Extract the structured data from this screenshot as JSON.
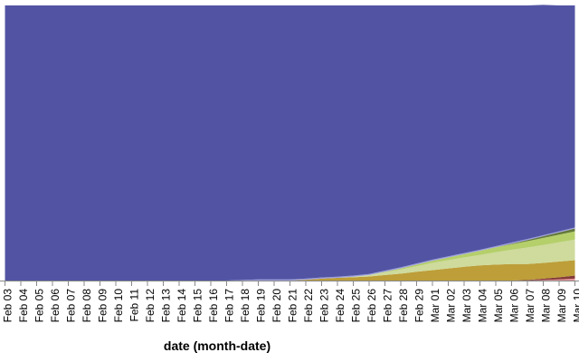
{
  "chart_data": {
    "type": "area",
    "stacked": "normalize",
    "xlabel": "date (month-date)",
    "ylabel": "",
    "ylim": [
      0,
      1
    ],
    "grid": false,
    "legend": "none",
    "x": [
      "Feb 03",
      "Feb 04",
      "Feb 05",
      "Feb 06",
      "Feb 07",
      "Feb 08",
      "Feb 09",
      "Feb 10",
      "Feb 11",
      "Feb 12",
      "Feb 13",
      "Feb 14",
      "Feb 15",
      "Feb 16",
      "Feb 17",
      "Feb 18",
      "Feb 19",
      "Feb 20",
      "Feb 21",
      "Feb 22",
      "Feb 23",
      "Feb 24",
      "Feb 25",
      "Feb 26",
      "Feb 27",
      "Feb 28",
      "Feb 29",
      "Mar 01",
      "Mar 02",
      "Mar 03",
      "Mar 04",
      "Mar 05",
      "Mar 06",
      "Mar 07",
      "Mar 08",
      "Mar 09",
      "Mar 10"
    ],
    "series": [
      {
        "color": "#e7969c",
        "values": [
          0,
          0,
          0,
          0,
          0,
          0,
          0,
          0,
          0,
          0,
          0,
          0,
          0,
          0,
          0,
          0,
          0,
          0,
          0,
          0,
          0,
          0,
          0,
          0,
          0,
          0,
          0,
          0,
          0,
          0,
          0,
          0,
          0,
          0,
          0.002,
          0.004,
          0.007
        ]
      },
      {
        "color": "#843c39",
        "values": [
          0,
          0,
          0,
          0,
          0,
          0,
          0,
          0,
          0,
          0,
          0,
          0,
          0,
          0,
          0,
          0,
          0,
          0,
          0,
          0,
          0,
          0,
          0,
          0,
          0,
          0,
          0,
          0,
          0,
          0,
          0,
          0,
          0,
          0.002,
          0.005,
          0.008,
          0.011
        ]
      },
      {
        "color": "#bd9e39",
        "values": [
          0,
          0,
          0,
          0,
          0,
          0,
          0,
          0,
          0,
          0,
          0,
          0,
          0,
          0,
          0,
          0,
          0,
          0,
          0,
          0.003,
          0.007,
          0.01,
          0.012,
          0.015,
          0.02,
          0.025,
          0.032,
          0.038,
          0.044,
          0.05,
          0.055,
          0.058,
          0.06,
          0.058,
          0.057,
          0.057,
          0.056
        ]
      },
      {
        "color": "#cedb9c",
        "values": [
          0,
          0,
          0,
          0,
          0,
          0,
          0,
          0,
          0,
          0,
          0,
          0,
          0,
          0,
          0,
          0,
          0,
          0,
          0,
          0,
          0,
          0,
          0.002,
          0.005,
          0.01,
          0.015,
          0.02,
          0.026,
          0.03,
          0.034,
          0.038,
          0.045,
          0.052,
          0.06,
          0.065,
          0.07,
          0.075
        ]
      },
      {
        "color": "#b5cf6b",
        "values": [
          0,
          0,
          0,
          0,
          0,
          0,
          0,
          0,
          0,
          0,
          0,
          0,
          0,
          0,
          0,
          0,
          0,
          0,
          0,
          0,
          0,
          0,
          0,
          0,
          0.002,
          0.004,
          0.006,
          0.008,
          0.01,
          0.012,
          0.015,
          0.018,
          0.02,
          0.023,
          0.026,
          0.028,
          0.03
        ]
      },
      {
        "color": "#637939",
        "values": [
          0,
          0,
          0,
          0,
          0,
          0,
          0,
          0,
          0,
          0,
          0,
          0,
          0,
          0,
          0,
          0,
          0,
          0,
          0,
          0,
          0,
          0,
          0,
          0,
          0,
          0,
          0,
          0,
          0,
          0,
          0,
          0,
          0.002,
          0.004,
          0.006,
          0.008,
          0.01
        ]
      },
      {
        "color": "#9c9ede",
        "values": [
          0,
          0,
          0,
          0,
          0,
          0,
          0,
          0,
          0,
          0,
          0,
          0,
          0,
          0,
          0,
          0.002,
          0.004,
          0.004,
          0.004,
          0.004,
          0.004,
          0.004,
          0.004,
          0.004,
          0.004,
          0.004,
          0.004,
          0.004,
          0.004,
          0.004,
          0.004,
          0.004,
          0.004,
          0.004,
          0.004,
          0.004,
          0.004
        ]
      },
      {
        "color": "#5254a3",
        "values": [
          1,
          1,
          1,
          1,
          1,
          1,
          1,
          1,
          1,
          1,
          1,
          1,
          1,
          1,
          1,
          0.998,
          0.996,
          0.996,
          0.996,
          0.993,
          0.989,
          0.986,
          0.982,
          0.976,
          0.964,
          0.952,
          0.938,
          0.924,
          0.912,
          0.9,
          0.888,
          0.875,
          0.862,
          0.849,
          0.837,
          0.821,
          0.807
        ]
      }
    ]
  }
}
